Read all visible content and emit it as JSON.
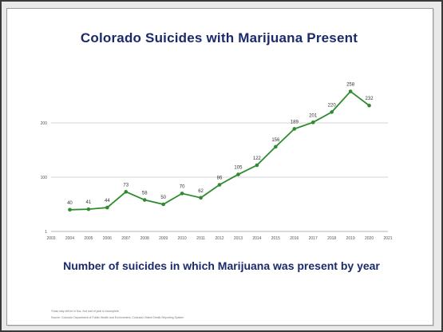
{
  "slide": {
    "title": "Colorado Suicides with Marijuana Present",
    "subtitle": "Number of suicides in which Marijuana was present by year",
    "source_line1": "*Data may still be in flux, 2nd half of year is incomplete.",
    "source_line2": "Source: Colorado Department of Public Health and Environment, Colorado Violent Death Reporting System"
  },
  "chart_data": {
    "type": "line",
    "title": "",
    "xlabel": "",
    "ylabel": "",
    "x": [
      2004,
      2005,
      2006,
      2007,
      2008,
      2009,
      2010,
      2011,
      2012,
      2013,
      2014,
      2015,
      2016,
      2017,
      2018,
      2019,
      2020
    ],
    "x_ticks": [
      "2003",
      "2004",
      "2005",
      "2006",
      "2007",
      "2008",
      "2009",
      "2010",
      "2011",
      "2012",
      "2013",
      "2014",
      "2015",
      "2016",
      "2017",
      "2018",
      "2019",
      "2020",
      "2021"
    ],
    "y_ticks": [
      "1",
      "100",
      "200"
    ],
    "xlim": [
      2003,
      2021
    ],
    "ylim": [
      0,
      250
    ],
    "grid": true,
    "series": [
      {
        "values": [
          40,
          41,
          44,
          73,
          58,
          50,
          70,
          62,
          86,
          105,
          122,
          156,
          189,
          201,
          220,
          258,
          232
        ],
        "labels": [
          "40",
          "41",
          "44",
          "73",
          "58",
          "50",
          "70",
          "62",
          "86",
          "105",
          "122",
          "156",
          "189",
          "201",
          "220",
          "258",
          "232"
        ],
        "color": "#2e8b2e"
      }
    ]
  }
}
